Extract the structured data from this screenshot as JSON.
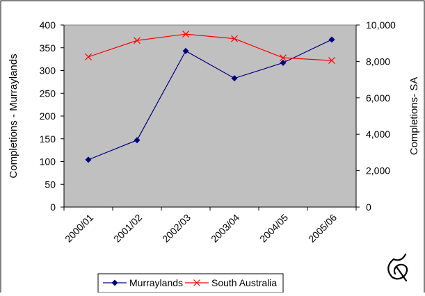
{
  "chart_data": {
    "type": "line",
    "categories": [
      "2000/01",
      "2001/02",
      "2002/03",
      "2003/04",
      "2004/05",
      "2005/06"
    ],
    "series": [
      {
        "name": "Murraylands",
        "axis": "left",
        "values": [
          104,
          147,
          343,
          283,
          317,
          368
        ],
        "color": "#00007f",
        "marker": "diamond"
      },
      {
        "name": "South Australia",
        "axis": "right",
        "values": [
          8250,
          9150,
          9500,
          9250,
          8200,
          8050
        ],
        "color": "#ff0000",
        "marker": "x"
      }
    ],
    "ylabel": "Completions - Murraylands",
    "ylabel_right": "Completions- SA",
    "ylim": [
      0,
      400
    ],
    "yticks": [
      "0",
      "50",
      "100",
      "150",
      "200",
      "250",
      "300",
      "350",
      "400"
    ],
    "ylim_right": [
      0,
      10000
    ],
    "yticks_right": [
      "0",
      "2,000",
      "4,000",
      "6,000",
      "8,000",
      "10,000"
    ],
    "plot_background": "#c0c0c0",
    "grid": false,
    "legend_position": "bottom"
  }
}
